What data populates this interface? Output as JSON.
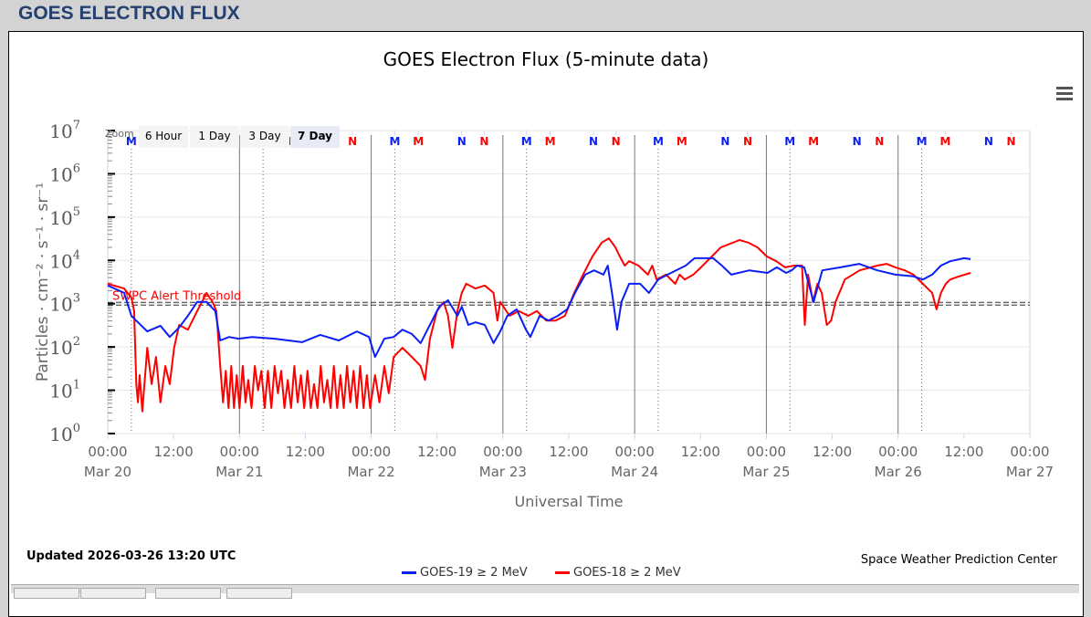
{
  "page_title": "GOES ELECTRON FLUX",
  "zoom": {
    "label": "Zoom",
    "buttons": [
      "6 Hour",
      "1 Day",
      "3 Day",
      "7 Day"
    ],
    "selected": "7 Day"
  },
  "footer": {
    "updated": "Updated 2026-03-26 13:20 UTC",
    "credit": "Space Weather Prediction Center"
  },
  "colors": {
    "goes19": "#0a1ef5",
    "goes18": "#ff0000",
    "title": "#253f70"
  },
  "chart_data": {
    "type": "line",
    "title": "GOES Electron Flux (5-minute data)",
    "xlabel": "Universal Time",
    "ylabel": "Particles · cm⁻² · s⁻¹ · sr⁻¹",
    "yscale": "log",
    "ylim_exponents": [
      0,
      7
    ],
    "y_tick_exponents": [
      0,
      1,
      2,
      3,
      4,
      5,
      6,
      7
    ],
    "x_unit": "hours since 2026-03-20 00:00 UTC",
    "xlim_hours": [
      0,
      168
    ],
    "x_ticks": [
      {
        "time": "00:00",
        "date": "Mar 20"
      },
      {
        "time": "12:00",
        "date": ""
      },
      {
        "time": "00:00",
        "date": "Mar 21"
      },
      {
        "time": "12:00",
        "date": ""
      },
      {
        "time": "00:00",
        "date": "Mar 22"
      },
      {
        "time": "12:00",
        "date": ""
      },
      {
        "time": "00:00",
        "date": "Mar 23"
      },
      {
        "time": "12:00",
        "date": ""
      },
      {
        "time": "00:00",
        "date": "Mar 24"
      },
      {
        "time": "12:00",
        "date": ""
      },
      {
        "time": "00:00",
        "date": "Mar 25"
      },
      {
        "time": "12:00",
        "date": ""
      },
      {
        "time": "00:00",
        "date": "Mar 26"
      },
      {
        "time": "12:00",
        "date": ""
      },
      {
        "time": "00:00",
        "date": "Mar 27"
      }
    ],
    "threshold": {
      "label": "SWPC Alert Threshold",
      "value": 1000
    },
    "daily_markers": [
      {
        "label": "M",
        "hour": 4.3,
        "series": "GOES-19"
      },
      {
        "label": "M",
        "hour": 8.6,
        "series": "GOES-18"
      },
      {
        "label": "N",
        "hour": 16.5,
        "series": "GOES-19"
      },
      {
        "label": "N",
        "hour": 20.6,
        "series": "GOES-18"
      }
    ],
    "legend_position": "bottom-center",
    "series": [
      {
        "name": "GOES-19 ≥ 2 MeV",
        "color": "#0a1ef5",
        "log10_points": [
          [
            0,
            3.42
          ],
          [
            3,
            3.25
          ],
          [
            4.3,
            2.72
          ],
          [
            5.5,
            2.57
          ],
          [
            7.2,
            2.36
          ],
          [
            9.6,
            2.49
          ],
          [
            11.3,
            2.23
          ],
          [
            13,
            2.45
          ],
          [
            14.6,
            2.72
          ],
          [
            16.3,
            3.04
          ],
          [
            18,
            3.04
          ],
          [
            19.6,
            2.83
          ],
          [
            20.5,
            2.15
          ],
          [
            22.1,
            2.23
          ],
          [
            23.8,
            2.19
          ],
          [
            26.3,
            2.23
          ],
          [
            30.4,
            2.19
          ],
          [
            35.4,
            2.11
          ],
          [
            38.7,
            2.28
          ],
          [
            42.1,
            2.15
          ],
          [
            45.4,
            2.36
          ],
          [
            47.6,
            2.23
          ],
          [
            48.7,
            1.77
          ],
          [
            50.4,
            2.19
          ],
          [
            52.1,
            2.23
          ],
          [
            53.7,
            2.4
          ],
          [
            55.4,
            2.3
          ],
          [
            57,
            2.09
          ],
          [
            58.7,
            2.51
          ],
          [
            60.4,
            2.93
          ],
          [
            62,
            3.08
          ],
          [
            63.7,
            2.72
          ],
          [
            64.5,
            2.93
          ],
          [
            65.7,
            2.51
          ],
          [
            67,
            2.57
          ],
          [
            68.7,
            2.51
          ],
          [
            70.3,
            2.09
          ],
          [
            71.5,
            2.36
          ],
          [
            72.8,
            2.72
          ],
          [
            74.5,
            2.87
          ],
          [
            76.2,
            2.4
          ],
          [
            77,
            2.23
          ],
          [
            78.7,
            2.72
          ],
          [
            80.3,
            2.61
          ],
          [
            82,
            2.72
          ],
          [
            83.7,
            2.87
          ],
          [
            85.3,
            3.29
          ],
          [
            87,
            3.67
          ],
          [
            88.6,
            3.77
          ],
          [
            90.3,
            3.67
          ],
          [
            91.1,
            3.88
          ],
          [
            92,
            3.14
          ],
          [
            92.8,
            2.4
          ],
          [
            93.6,
            3.04
          ],
          [
            95,
            3.46
          ],
          [
            97,
            3.46
          ],
          [
            98.6,
            3.25
          ],
          [
            100.3,
            3.56
          ],
          [
            102,
            3.67
          ],
          [
            105.3,
            3.88
          ],
          [
            106.9,
            4.05
          ],
          [
            110.3,
            4.05
          ],
          [
            111.9,
            3.88
          ],
          [
            113.6,
            3.67
          ],
          [
            116.9,
            3.77
          ],
          [
            120.2,
            3.71
          ],
          [
            121.9,
            3.84
          ],
          [
            123.6,
            3.71
          ],
          [
            124.6,
            3.77
          ],
          [
            125.6,
            3.88
          ],
          [
            126.9,
            3.84
          ],
          [
            128.6,
            3.04
          ],
          [
            130.2,
            3.77
          ],
          [
            133.5,
            3.84
          ],
          [
            136.9,
            3.92
          ],
          [
            140.2,
            3.77
          ],
          [
            143.5,
            3.67
          ],
          [
            146.8,
            3.63
          ],
          [
            148.5,
            3.56
          ],
          [
            150.2,
            3.67
          ],
          [
            151.8,
            3.88
          ],
          [
            153.5,
            3.98
          ],
          [
            156,
            4.05
          ],
          [
            157.2,
            4.03
          ]
        ]
      },
      {
        "name": "GOES-18 ≥ 2 MeV",
        "color": "#ff0000",
        "log10_points": [
          [
            0,
            3.46
          ],
          [
            3,
            3.35
          ],
          [
            4.3,
            3.14
          ],
          [
            4.8,
            2.83
          ],
          [
            5.2,
            1.14
          ],
          [
            5.5,
            0.72
          ],
          [
            5.8,
            1.35
          ],
          [
            6.3,
            0.51
          ],
          [
            7.2,
            1.98
          ],
          [
            8,
            1.14
          ],
          [
            8.8,
            1.77
          ],
          [
            9.6,
            0.72
          ],
          [
            10.5,
            1.56
          ],
          [
            11.3,
            1.14
          ],
          [
            12.1,
            1.98
          ],
          [
            13,
            2.51
          ],
          [
            14.6,
            2.4
          ],
          [
            16.3,
            2.83
          ],
          [
            18,
            3.25
          ],
          [
            19.1,
            3.04
          ],
          [
            19.8,
            2.83
          ],
          [
            20.5,
            1.56
          ],
          [
            21,
            0.72
          ],
          [
            21.5,
            1.45
          ],
          [
            22,
            0.59
          ],
          [
            22.5,
            1.56
          ],
          [
            23,
            0.59
          ],
          [
            23.5,
            1.35
          ],
          [
            24,
            0.59
          ],
          [
            24.6,
            1.56
          ],
          [
            25.1,
            0.72
          ],
          [
            25.6,
            1.24
          ],
          [
            26.2,
            0.59
          ],
          [
            26.8,
            1.56
          ],
          [
            27.4,
            1.0
          ],
          [
            28,
            1.45
          ],
          [
            28.6,
            0.59
          ],
          [
            29.2,
            1.45
          ],
          [
            29.8,
            0.59
          ],
          [
            30.4,
            1.56
          ],
          [
            31,
            0.93
          ],
          [
            31.6,
            1.45
          ],
          [
            32.2,
            0.59
          ],
          [
            32.8,
            1.24
          ],
          [
            33.4,
            0.59
          ],
          [
            34,
            1.56
          ],
          [
            34.6,
            0.72
          ],
          [
            35.2,
            1.35
          ],
          [
            35.8,
            0.59
          ],
          [
            36.4,
            1.45
          ],
          [
            37,
            0.59
          ],
          [
            37.6,
            1.14
          ],
          [
            38.2,
            0.59
          ],
          [
            38.8,
            1.56
          ],
          [
            39.4,
            0.72
          ],
          [
            40,
            1.24
          ],
          [
            40.6,
            0.59
          ],
          [
            41.2,
            1.56
          ],
          [
            41.8,
            0.59
          ],
          [
            42.4,
            1.35
          ],
          [
            43,
            0.59
          ],
          [
            43.6,
            1.56
          ],
          [
            44.2,
            0.72
          ],
          [
            44.8,
            1.45
          ],
          [
            45.4,
            0.59
          ],
          [
            46,
            1.56
          ],
          [
            46.6,
            0.59
          ],
          [
            47.2,
            1.35
          ],
          [
            47.8,
            0.59
          ],
          [
            48.7,
            1.35
          ],
          [
            49.5,
            0.72
          ],
          [
            50.4,
            1.56
          ],
          [
            51.2,
            0.93
          ],
          [
            52.1,
            1.77
          ],
          [
            53.7,
            1.98
          ],
          [
            55.4,
            1.77
          ],
          [
            57,
            1.56
          ],
          [
            57.8,
            1.24
          ],
          [
            58.7,
            2.19
          ],
          [
            60,
            2.83
          ],
          [
            61.2,
            3.04
          ],
          [
            62,
            2.72
          ],
          [
            62.8,
            1.98
          ],
          [
            63.7,
            2.83
          ],
          [
            64.5,
            3.25
          ],
          [
            65.3,
            3.46
          ],
          [
            67,
            3.35
          ],
          [
            68.7,
            3.42
          ],
          [
            70.3,
            3.25
          ],
          [
            71,
            2.61
          ],
          [
            71.5,
            3.04
          ],
          [
            73.2,
            2.72
          ],
          [
            74.9,
            2.83
          ],
          [
            76.6,
            2.72
          ],
          [
            78.2,
            2.83
          ],
          [
            79.9,
            2.61
          ],
          [
            81.6,
            2.61
          ],
          [
            83.3,
            2.72
          ],
          [
            85,
            3.25
          ],
          [
            86.6,
            3.67
          ],
          [
            88.3,
            4.09
          ],
          [
            90,
            4.41
          ],
          [
            91.3,
            4.51
          ],
          [
            92.5,
            4.3
          ],
          [
            93.3,
            4.09
          ],
          [
            94.2,
            3.88
          ],
          [
            95,
            3.98
          ],
          [
            96.7,
            3.88
          ],
          [
            98.4,
            3.67
          ],
          [
            99.2,
            3.88
          ],
          [
            100,
            3.56
          ],
          [
            101.7,
            3.67
          ],
          [
            103.4,
            3.46
          ],
          [
            104.2,
            3.67
          ],
          [
            105.1,
            3.56
          ],
          [
            106.7,
            3.67
          ],
          [
            108.4,
            3.88
          ],
          [
            111.7,
            4.3
          ],
          [
            115.1,
            4.47
          ],
          [
            116.7,
            4.41
          ],
          [
            118.4,
            4.3
          ],
          [
            120.1,
            4.09
          ],
          [
            121.8,
            3.98
          ],
          [
            123.4,
            3.84
          ],
          [
            125.1,
            3.88
          ],
          [
            126.5,
            3.88
          ],
          [
            126.8,
            3.04
          ],
          [
            127,
            2.51
          ],
          [
            127.6,
            3.67
          ],
          [
            128.5,
            3.04
          ],
          [
            129.3,
            3.46
          ],
          [
            130.1,
            3.25
          ],
          [
            131,
            2.51
          ],
          [
            131.8,
            2.61
          ],
          [
            132.6,
            3.04
          ],
          [
            134.3,
            3.56
          ],
          [
            137,
            3.77
          ],
          [
            140.2,
            3.88
          ],
          [
            141.9,
            3.92
          ],
          [
            143.5,
            3.84
          ],
          [
            145.2,
            3.77
          ],
          [
            146.8,
            3.67
          ],
          [
            148.5,
            3.46
          ],
          [
            150.2,
            3.25
          ],
          [
            151,
            2.87
          ],
          [
            151.8,
            3.25
          ],
          [
            152.7,
            3.46
          ],
          [
            153.5,
            3.56
          ],
          [
            155.1,
            3.63
          ],
          [
            157.2,
            3.71
          ]
        ]
      }
    ]
  }
}
